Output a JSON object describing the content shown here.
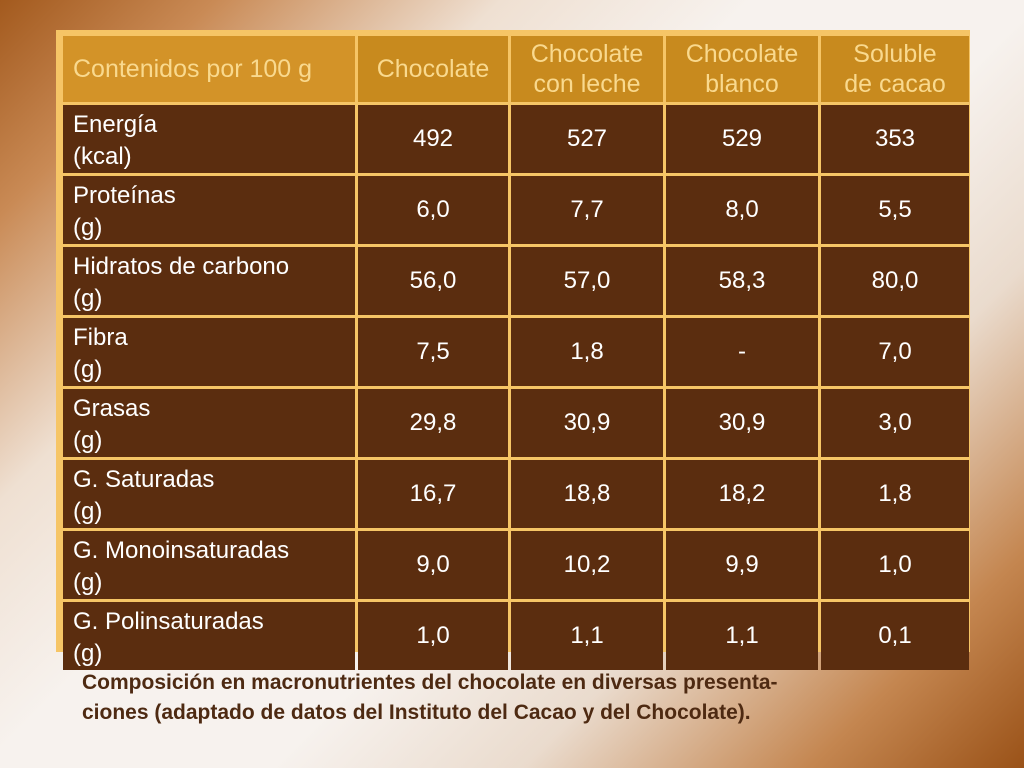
{
  "table": {
    "headers": [
      {
        "line1": "Contenidos por 100 g",
        "line2": ""
      },
      {
        "line1": "Chocolate",
        "line2": ""
      },
      {
        "line1": "Chocolate",
        "line2": "con leche"
      },
      {
        "line1": "Chocolate",
        "line2": "blanco"
      },
      {
        "line1": "Soluble",
        "line2": "de cacao"
      }
    ],
    "rows": [
      {
        "name": "Energía",
        "unit": "(kcal)",
        "values": [
          "492",
          "527",
          "529",
          "353"
        ]
      },
      {
        "name": "Proteínas",
        "unit": "(g)",
        "values": [
          "6,0",
          "7,7",
          "8,0",
          "5,5"
        ]
      },
      {
        "name": "Hidratos de carbono",
        "unit": "(g)",
        "values": [
          "56,0",
          "57,0",
          "58,3",
          "80,0"
        ]
      },
      {
        "name": "Fibra",
        "unit": "(g)",
        "values": [
          "7,5",
          "1,8",
          "-",
          "7,0"
        ]
      },
      {
        "name": "Grasas",
        "unit": "(g)",
        "values": [
          "29,8",
          "30,9",
          "30,9",
          "3,0"
        ]
      },
      {
        "name": "G. Saturadas",
        "unit": "(g)",
        "values": [
          "16,7",
          "18,8",
          "18,2",
          "1,8"
        ]
      },
      {
        "name": "G. Monoinsaturadas",
        "unit": "(g)",
        "values": [
          "9,0",
          "10,2",
          "9,9",
          "1,0"
        ]
      },
      {
        "name": "G. Polinsaturadas",
        "unit": "(g)",
        "values": [
          "1,0",
          "1,1",
          "1,1",
          "0,1"
        ]
      }
    ]
  },
  "caption": {
    "line1": "Composición en macronutrientes del chocolate en diversas presenta-",
    "line2": "ciones (adaptado de datos del Instituto del Cacao y del Chocolate)."
  },
  "colors": {
    "header_bg": "#c88a1e",
    "header_text": "#f9d98e",
    "cell_bg": "#5b2d0f",
    "cell_text": "#ffffff",
    "grid": "#f6c566",
    "caption_text": "#4e2a12"
  }
}
